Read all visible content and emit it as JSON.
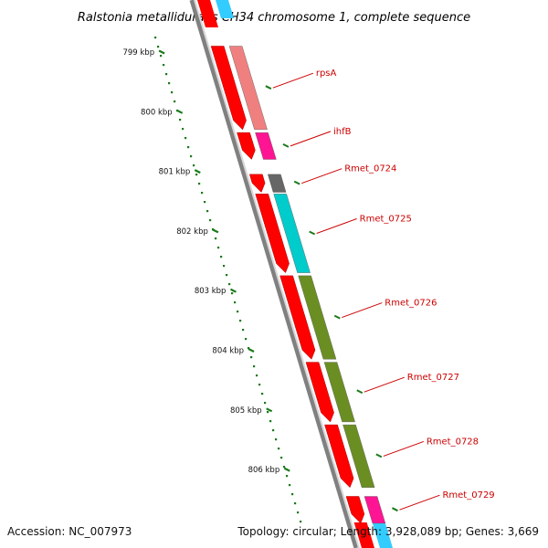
{
  "title": "Ralstonia metallidurans CH34 chromosome 1, complete sequence",
  "footer": {
    "accession": "Accession: NC_007973",
    "summary": "Topology: circular; Length: 3,928,089 bp; Genes: 3,669"
  },
  "colors": {
    "cds_strand": "#ff0000",
    "backbone": "#808080",
    "tick": "#1a7a1a",
    "label": "#cc0000",
    "rpsA": "#f08080",
    "ihfB": "#ff1493",
    "Rmet_0724": "#666666",
    "Rmet_0725": "#00cccc",
    "Rmet_0726": "#6b8e23",
    "Rmet_0727": "#6b8e23",
    "Rmet_0728": "#6b8e23",
    "Rmet_0729": "#ff1493",
    "trailing": "#33ccff"
  },
  "kbp_marks": [
    {
      "label": "799 kbp",
      "kbp": 799
    },
    {
      "label": "800 kbp",
      "kbp": 800
    },
    {
      "label": "801 kbp",
      "kbp": 801
    },
    {
      "label": "802 kbp",
      "kbp": 802
    },
    {
      "label": "803 kbp",
      "kbp": 803
    },
    {
      "label": "804 kbp",
      "kbp": 804
    },
    {
      "label": "805 kbp",
      "kbp": 805
    },
    {
      "label": "806 kbp",
      "kbp": 806
    }
  ],
  "genes": [
    {
      "name": "rpsA",
      "start_kbp": 798.9,
      "end_kbp": 800.3
    },
    {
      "name": "ihfB",
      "start_kbp": 800.35,
      "end_kbp": 800.8
    },
    {
      "name": "Rmet_0724",
      "start_kbp": 801.05,
      "end_kbp": 801.35
    },
    {
      "name": "Rmet_0725",
      "start_kbp": 801.38,
      "end_kbp": 802.7
    },
    {
      "name": "Rmet_0726",
      "start_kbp": 802.75,
      "end_kbp": 804.15
    },
    {
      "name": "Rmet_0727",
      "start_kbp": 804.2,
      "end_kbp": 805.2
    },
    {
      "name": "Rmet_0728",
      "start_kbp": 805.25,
      "end_kbp": 806.3
    },
    {
      "name": "Rmet_0729",
      "start_kbp": 806.45,
      "end_kbp": 806.9
    }
  ]
}
